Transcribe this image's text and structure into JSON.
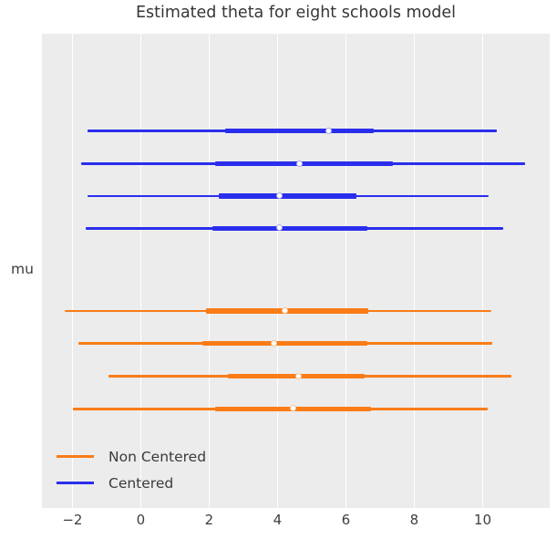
{
  "title": "Estimated theta for eight schools model",
  "y_axis_label": "mu",
  "x_axis": {
    "tick_labels": [
      "−2",
      "0",
      "2",
      "4",
      "6",
      "8",
      "10"
    ],
    "tick_values": [
      -2,
      0,
      2,
      4,
      6,
      8,
      10
    ]
  },
  "legend": {
    "items": [
      {
        "label": "Non Centered",
        "color": "#fa7c17"
      },
      {
        "label": "Centered",
        "color": "#2a2eec"
      }
    ]
  },
  "colors": {
    "figure_background": "#ffffff",
    "plot_background": "#ececec",
    "gridline": "#ffffff",
    "text": "#3b3b3b",
    "centered_blue": "#2a2eec",
    "non_centered_orange": "#fa7c17"
  },
  "chart_data": {
    "type": "forest",
    "title": "Estimated theta for eight schools model",
    "xlabel": "",
    "ylabel": "mu",
    "xlim": [
      -2.89,
      11.96
    ],
    "x_ticks": [
      -2,
      0,
      2,
      4,
      6,
      8,
      10
    ],
    "grid": "vertical-only",
    "legend_position": "lower left",
    "legend_order": [
      "Non Centered",
      "Centered"
    ],
    "series": [
      {
        "name": "Centered",
        "color": "#2a2eec",
        "marker_ring": "#a9aaf2",
        "rows": [
          {
            "ci94": [
              -1.57,
              10.41
            ],
            "hdi50": [
              2.46,
              6.82
            ],
            "median": 5.51
          },
          {
            "ci94": [
              -1.75,
              11.24
            ],
            "hdi50": [
              2.17,
              7.37
            ],
            "median": 4.66
          },
          {
            "ci94": [
              -1.57,
              10.17
            ],
            "hdi50": [
              2.28,
              6.31
            ],
            "median": 4.07
          },
          {
            "ci94": [
              -1.61,
              10.6
            ],
            "hdi50": [
              2.1,
              6.63
            ],
            "median": 4.07
          }
        ]
      },
      {
        "name": "Non Centered",
        "color": "#fa7c17",
        "marker_ring": "#fbc491",
        "rows": [
          {
            "ci94": [
              -2.23,
              10.25
            ],
            "hdi50": [
              1.91,
              6.65
            ],
            "median": 4.24
          },
          {
            "ci94": [
              -1.83,
              10.27
            ],
            "hdi50": [
              1.8,
              6.63
            ],
            "median": 3.92
          },
          {
            "ci94": [
              -0.95,
              10.84
            ],
            "hdi50": [
              2.55,
              6.55
            ],
            "median": 4.63
          },
          {
            "ci94": [
              -1.99,
              10.15
            ],
            "hdi50": [
              2.17,
              6.74
            ],
            "median": 4.48
          }
        ]
      }
    ]
  }
}
